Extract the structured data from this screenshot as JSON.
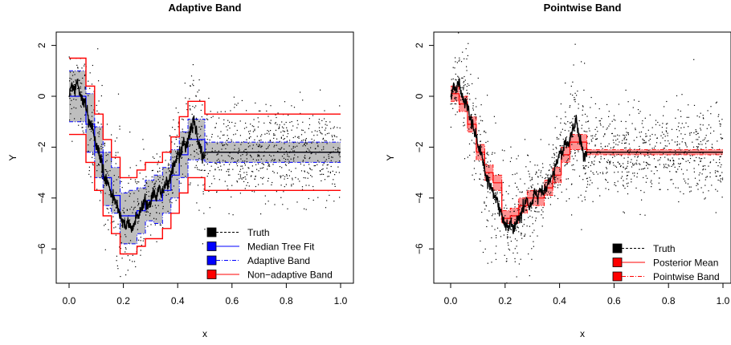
{
  "chart_data": [
    {
      "type": "scatter",
      "title": "Adaptive Band",
      "xlabel": "x",
      "ylabel": "Y",
      "xlim": [
        0,
        1
      ],
      "ylim": [
        -7.2,
        2.3
      ],
      "xticks": [
        "0.0",
        "0.2",
        "0.4",
        "0.6",
        "0.8",
        "1.0"
      ],
      "yticks": [
        "2",
        "0",
        "−2",
        "−4",
        "−6"
      ],
      "legend_position": "bottom-right",
      "legend": [
        "Truth",
        "Median Tree Fit",
        "Adaptive Band",
        "Non−adaptive Band"
      ],
      "colors": {
        "truth": "#000000",
        "fit": "#0000ff",
        "band_fill": "#bebebe",
        "nonadaptive": "#ff0000"
      },
      "steps_x": [
        0,
        0.031,
        0.062,
        0.094,
        0.125,
        0.156,
        0.188,
        0.219,
        0.25,
        0.281,
        0.312,
        0.344,
        0.375,
        0.406,
        0.438,
        0.5,
        1.0
      ],
      "fit_y": [
        0.0,
        0.0,
        -1.1,
        -2.2,
        -3.2,
        -3.9,
        -4.7,
        -4.7,
        -4.5,
        -4.1,
        -4.1,
        -3.7,
        -3.1,
        -2.3,
        -1.7,
        -2.2
      ],
      "band_lower": [
        -1.0,
        -1.0,
        -2.2,
        -3.2,
        -4.3,
        -4.6,
        -5.8,
        -5.8,
        -5.4,
        -4.9,
        -5.0,
        -4.6,
        -4.0,
        -3.2,
        -2.5,
        -2.6
      ],
      "band_upper": [
        1.0,
        1.0,
        0.1,
        -1.2,
        -2.2,
        -2.8,
        -3.8,
        -3.7,
        -3.6,
        -3.3,
        -3.1,
        -2.8,
        -2.1,
        -1.4,
        -0.9,
        -1.8
      ],
      "nonadaptive_lower": [
        -1.5,
        -1.5,
        -2.6,
        -3.7,
        -4.7,
        -5.4,
        -6.2,
        -6.2,
        -5.9,
        -5.6,
        -5.6,
        -5.2,
        -4.6,
        -3.8,
        -3.2,
        -3.7
      ],
      "nonadaptive_upper": [
        1.5,
        1.5,
        0.4,
        -0.7,
        -1.7,
        -2.4,
        -3.2,
        -3.2,
        -2.9,
        -2.6,
        -2.6,
        -2.2,
        -1.6,
        -0.8,
        -0.2,
        -0.7
      ],
      "truth_points": [
        [
          0.0,
          0.0
        ],
        [
          0.01,
          0.5
        ],
        [
          0.02,
          0.2
        ],
        [
          0.03,
          0.6
        ],
        [
          0.04,
          0.1
        ],
        [
          0.05,
          -0.3
        ],
        [
          0.06,
          -0.2
        ],
        [
          0.07,
          -0.9
        ],
        [
          0.08,
          -1.1
        ],
        [
          0.09,
          -1.5
        ],
        [
          0.1,
          -1.9
        ],
        [
          0.11,
          -2.2
        ],
        [
          0.12,
          -2.6
        ],
        [
          0.13,
          -3.2
        ],
        [
          0.14,
          -3.3
        ],
        [
          0.15,
          -3.6
        ],
        [
          0.16,
          -3.9
        ],
        [
          0.17,
          -4.1
        ],
        [
          0.18,
          -4.4
        ],
        [
          0.19,
          -4.8
        ],
        [
          0.2,
          -5.0
        ],
        [
          0.21,
          -5.1
        ],
        [
          0.22,
          -4.9
        ],
        [
          0.23,
          -5.2
        ],
        [
          0.24,
          -5.0
        ],
        [
          0.25,
          -4.7
        ],
        [
          0.26,
          -4.6
        ],
        [
          0.27,
          -4.3
        ],
        [
          0.28,
          -4.0
        ],
        [
          0.29,
          -4.4
        ],
        [
          0.3,
          -4.2
        ],
        [
          0.31,
          -3.7
        ],
        [
          0.32,
          -4.0
        ],
        [
          0.33,
          -3.6
        ],
        [
          0.34,
          -3.9
        ],
        [
          0.35,
          -3.6
        ],
        [
          0.36,
          -3.4
        ],
        [
          0.37,
          -3.3
        ],
        [
          0.38,
          -2.9
        ],
        [
          0.39,
          -2.6
        ],
        [
          0.4,
          -2.2
        ],
        [
          0.41,
          -2.3
        ],
        [
          0.42,
          -1.8
        ],
        [
          0.43,
          -2.0
        ],
        [
          0.44,
          -1.6
        ],
        [
          0.45,
          -1.3
        ],
        [
          0.46,
          -0.9
        ],
        [
          0.47,
          -1.5
        ],
        [
          0.48,
          -1.9
        ],
        [
          0.49,
          -2.4
        ],
        [
          0.5,
          -2.2
        ],
        [
          0.6,
          -2.2
        ],
        [
          0.7,
          -2.2
        ],
        [
          0.8,
          -2.2
        ],
        [
          0.9,
          -2.2
        ],
        [
          1.0,
          -2.2
        ]
      ]
    },
    {
      "type": "scatter",
      "title": "Pointwise Band",
      "xlabel": "x",
      "ylabel": "Y",
      "xlim": [
        0,
        1
      ],
      "ylim": [
        -7.2,
        2.3
      ],
      "xticks": [
        "0.0",
        "0.2",
        "0.4",
        "0.6",
        "0.8",
        "1.0"
      ],
      "yticks": [
        "2",
        "0",
        "−2",
        "−4",
        "−6"
      ],
      "legend_position": "bottom-right",
      "legend": [
        "Truth",
        "Posterior Mean",
        "Pointwise Band"
      ],
      "colors": {
        "truth": "#000000",
        "mean": "#ff0000",
        "band_fill": "#ff8080"
      },
      "steps_x": [
        0,
        0.031,
        0.062,
        0.094,
        0.125,
        0.156,
        0.188,
        0.219,
        0.25,
        0.281,
        0.312,
        0.344,
        0.375,
        0.406,
        0.438,
        0.5,
        1.0
      ],
      "mean_y": [
        0.1,
        -0.3,
        -1.1,
        -2.2,
        -3.0,
        -3.4,
        -4.8,
        -4.7,
        -4.3,
        -4.0,
        -4.0,
        -3.6,
        -3.1,
        -2.3,
        -1.8,
        -2.2
      ],
      "band_lower": [
        -0.2,
        -0.6,
        -1.4,
        -2.5,
        -3.3,
        -3.7,
        -5.0,
        -5.0,
        -4.6,
        -4.3,
        -4.3,
        -3.9,
        -3.4,
        -2.6,
        -2.1,
        -2.3
      ],
      "band_upper": [
        0.4,
        0.0,
        -0.8,
        -1.9,
        -2.7,
        -3.1,
        -4.5,
        -4.4,
        -4.0,
        -3.7,
        -3.7,
        -3.3,
        -2.8,
        -2.0,
        -1.5,
        -2.1
      ],
      "truth_points": [
        [
          0.0,
          0.0
        ],
        [
          0.01,
          0.5
        ],
        [
          0.02,
          0.2
        ],
        [
          0.03,
          0.6
        ],
        [
          0.04,
          0.1
        ],
        [
          0.05,
          -0.3
        ],
        [
          0.06,
          -0.2
        ],
        [
          0.07,
          -0.9
        ],
        [
          0.08,
          -1.1
        ],
        [
          0.09,
          -1.5
        ],
        [
          0.1,
          -1.9
        ],
        [
          0.11,
          -2.2
        ],
        [
          0.12,
          -2.6
        ],
        [
          0.13,
          -3.2
        ],
        [
          0.14,
          -3.3
        ],
        [
          0.15,
          -3.6
        ],
        [
          0.16,
          -3.9
        ],
        [
          0.17,
          -4.1
        ],
        [
          0.18,
          -4.4
        ],
        [
          0.19,
          -4.8
        ],
        [
          0.2,
          -5.0
        ],
        [
          0.21,
          -5.1
        ],
        [
          0.22,
          -4.9
        ],
        [
          0.23,
          -5.2
        ],
        [
          0.24,
          -5.0
        ],
        [
          0.25,
          -4.7
        ],
        [
          0.26,
          -4.6
        ],
        [
          0.27,
          -4.3
        ],
        [
          0.28,
          -4.0
        ],
        [
          0.29,
          -4.4
        ],
        [
          0.3,
          -4.2
        ],
        [
          0.31,
          -3.7
        ],
        [
          0.32,
          -4.0
        ],
        [
          0.33,
          -3.6
        ],
        [
          0.34,
          -3.9
        ],
        [
          0.35,
          -3.6
        ],
        [
          0.36,
          -3.4
        ],
        [
          0.37,
          -3.3
        ],
        [
          0.38,
          -2.9
        ],
        [
          0.39,
          -2.6
        ],
        [
          0.4,
          -2.2
        ],
        [
          0.41,
          -2.3
        ],
        [
          0.42,
          -1.8
        ],
        [
          0.43,
          -2.0
        ],
        [
          0.44,
          -1.6
        ],
        [
          0.45,
          -1.3
        ],
        [
          0.46,
          -0.9
        ],
        [
          0.47,
          -1.5
        ],
        [
          0.48,
          -1.9
        ],
        [
          0.49,
          -2.4
        ],
        [
          0.5,
          -2.2
        ],
        [
          0.6,
          -2.2
        ],
        [
          0.7,
          -2.2
        ],
        [
          0.8,
          -2.2
        ],
        [
          0.9,
          -2.2
        ],
        [
          1.0,
          -2.2
        ]
      ]
    }
  ]
}
